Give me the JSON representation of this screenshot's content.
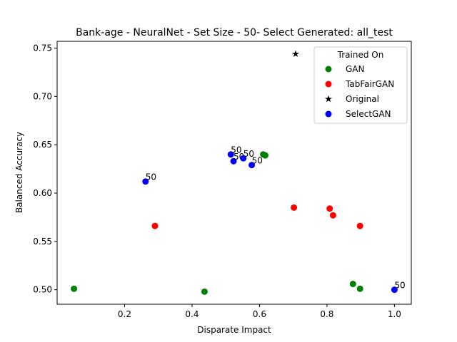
{
  "chart_data": {
    "type": "scatter",
    "title": "Bank-age - NeuralNet - Set Size - 50- Select Generated: all_test",
    "xlabel": "Disparate Impact",
    "ylabel": "Balanced Accuracy",
    "xlim": [
      -0.0,
      1.05
    ],
    "ylim": [
      0.485,
      0.757
    ],
    "xticks": [
      0.2,
      0.4,
      0.6,
      0.8,
      1.0
    ],
    "xtick_labels": [
      "0.2",
      "0.4",
      "0.6",
      "0.8",
      "1.0"
    ],
    "yticks": [
      0.5,
      0.55,
      0.6,
      0.65,
      0.7,
      0.75
    ],
    "ytick_labels": [
      "0.50",
      "0.55",
      "0.60",
      "0.65",
      "0.70",
      "0.75"
    ],
    "grid": false,
    "legend": {
      "title": "Trained On",
      "placement": "top-right"
    },
    "series": [
      {
        "name": "GAN",
        "color": "#008000",
        "marker": "circle",
        "points": [
          {
            "x": 0.05,
            "y": 0.501
          },
          {
            "x": 0.437,
            "y": 0.498
          },
          {
            "x": 0.611,
            "y": 0.64
          },
          {
            "x": 0.617,
            "y": 0.639
          },
          {
            "x": 0.877,
            "y": 0.506
          },
          {
            "x": 0.898,
            "y": 0.501
          }
        ]
      },
      {
        "name": "TabFairGAN",
        "color": "#ff0000",
        "marker": "circle",
        "points": [
          {
            "x": 0.29,
            "y": 0.566
          },
          {
            "x": 0.702,
            "y": 0.585
          },
          {
            "x": 0.808,
            "y": 0.584
          },
          {
            "x": 0.818,
            "y": 0.577
          },
          {
            "x": 0.898,
            "y": 0.566
          }
        ]
      },
      {
        "name": "Original",
        "color": "#000000",
        "marker": "star",
        "points": [
          {
            "x": 0.707,
            "y": 0.744
          }
        ]
      },
      {
        "name": "SelectGAN",
        "color": "#0000ff",
        "marker": "circle",
        "points": [
          {
            "x": 0.262,
            "y": 0.612,
            "label": "50"
          },
          {
            "x": 0.515,
            "y": 0.64,
            "label": "50"
          },
          {
            "x": 0.523,
            "y": 0.633,
            "label": "50"
          },
          {
            "x": 0.552,
            "y": 0.636,
            "label": "50"
          },
          {
            "x": 0.577,
            "y": 0.629,
            "label": "50"
          },
          {
            "x": 1.0,
            "y": 0.5,
            "label": "50"
          }
        ]
      }
    ]
  }
}
